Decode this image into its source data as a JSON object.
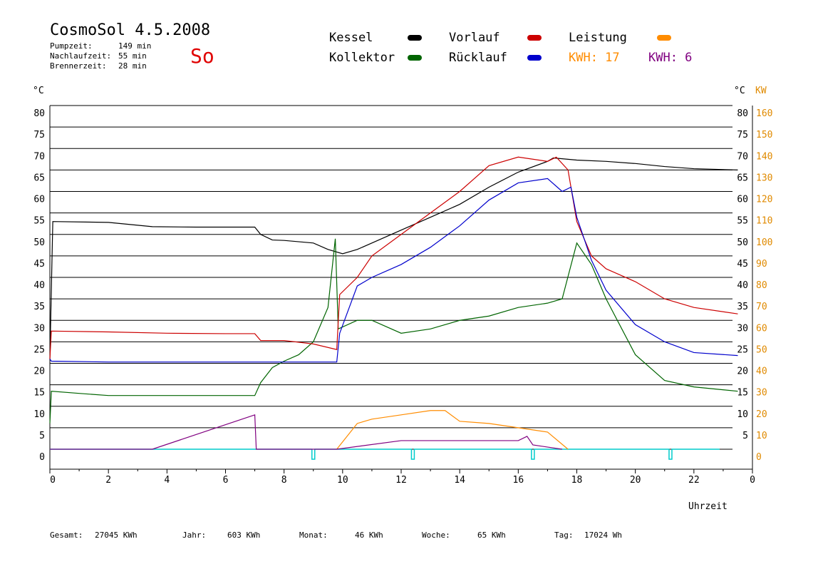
{
  "header": {
    "title": "CosmoSol 4.5.2008",
    "day_label": "So",
    "stats": [
      {
        "label": "Pumpzeit:",
        "value": "149 min"
      },
      {
        "label": "Nachlaufzeit:",
        "value": "55 min"
      },
      {
        "label": "Brennerzeit:",
        "value": "28 min"
      }
    ]
  },
  "legend": {
    "kessel": "Kessel",
    "kollektor": "Kollektor",
    "vorlauf": "Vorlauf",
    "ruecklauf": "Rücklauf",
    "leistung": "Leistung",
    "kwh1": "KWH: 17",
    "kwh2": "KWH: 6"
  },
  "footer": {
    "gesamt_label": "Gesamt:",
    "gesamt_value": "27045 KWh",
    "jahr_label": "Jahr:",
    "jahr_value": "603 KWh",
    "monat_label": "Monat:",
    "monat_value": "46 KWh",
    "woche_label": "Woche:",
    "woche_value": "65 KWh",
    "tag_label": "Tag:",
    "tag_value": "17024 Wh"
  },
  "colors": {
    "kessel": "#000000",
    "kollektor": "#006400",
    "vorlauf": "#cc0000",
    "ruecklauf": "#0000cc",
    "leistung": "#ff8c00",
    "kwh2": "#800080",
    "pump": "#00cccc"
  },
  "chart_data": {
    "type": "line",
    "xlabel": "Uhrzeit",
    "ylabel": "°C",
    "ylabel_right": "°C",
    "ylabel_right2": "KW",
    "xlim": [
      0,
      24
    ],
    "ylim": [
      0,
      80
    ],
    "ylim_right2": [
      0,
      160
    ],
    "x_ticks": [
      "0",
      "2",
      "4",
      "6",
      "8",
      "10",
      "12",
      "14",
      "16",
      "18",
      "20",
      "22",
      "0"
    ],
    "y_ticks": [
      "0",
      "5",
      "10",
      "15",
      "20",
      "25",
      "30",
      "35",
      "40",
      "45",
      "50",
      "55",
      "60",
      "65",
      "70",
      "75",
      "80"
    ],
    "y_ticks_right": [
      "5",
      "10",
      "15",
      "20",
      "25",
      "30",
      "35",
      "40",
      "45",
      "50",
      "55",
      "60",
      "65",
      "70",
      "75",
      "80"
    ],
    "y_ticks_right2": [
      "0",
      "10",
      "20",
      "30",
      "40",
      "50",
      "60",
      "70",
      "80",
      "90",
      "100",
      "110",
      "120",
      "130",
      "140",
      "150",
      "160"
    ],
    "grid": true,
    "series": [
      {
        "name": "Kessel",
        "color": "#000000",
        "x": [
          0,
          0.1,
          2,
          3.5,
          5,
          7,
          7.2,
          7.6,
          8,
          9,
          9.5,
          10,
          10.5,
          11,
          12,
          13,
          14,
          15,
          16,
          17,
          17.2,
          18,
          19,
          20,
          21,
          22,
          23.5
        ],
        "y": [
          21,
          53,
          52.8,
          51.8,
          51.7,
          51.7,
          50,
          48.7,
          48.6,
          48,
          46.5,
          45.5,
          46.5,
          48,
          51,
          54,
          57,
          61,
          64.5,
          67,
          67.8,
          67.3,
          67,
          66.5,
          65.8,
          65.3,
          65
        ]
      },
      {
        "name": "Kollektor",
        "color": "#006400",
        "x": [
          0,
          0.05,
          1,
          2,
          3,
          4,
          5,
          6,
          7,
          7.2,
          7.6,
          8,
          8.5,
          9,
          9.5,
          9.75,
          9.85,
          10.5,
          11,
          12,
          13,
          13.5,
          14,
          15,
          16,
          17,
          17.5,
          18,
          18.5,
          19,
          20,
          21,
          22,
          23.5
        ],
        "y": [
          6,
          13.5,
          13,
          12.5,
          12.5,
          12.5,
          12.5,
          12.5,
          12.5,
          15.5,
          19,
          20.5,
          22,
          25,
          33,
          49,
          28,
          30,
          30,
          27,
          28,
          29,
          30,
          31,
          33,
          34,
          35,
          48,
          43,
          35,
          22,
          16,
          14.5,
          13.5
        ]
      },
      {
        "name": "Vorlauf",
        "color": "#cc0000",
        "x": [
          0,
          0.05,
          2,
          4,
          6,
          7,
          7.2,
          8,
          9,
          9.8,
          9.9,
          10.5,
          11,
          12,
          13,
          14,
          15,
          16,
          17,
          17.3,
          17.7,
          18,
          18.5,
          19,
          20,
          21,
          22,
          23.5
        ],
        "y": [
          21,
          27.5,
          27.3,
          27,
          26.9,
          26.9,
          25.3,
          25.3,
          24.5,
          23.2,
          36,
          40,
          45,
          50,
          55,
          60,
          66,
          68,
          67,
          68,
          65,
          53,
          45,
          42,
          39,
          35,
          33,
          31.5
        ]
      },
      {
        "name": "Rücklauf",
        "color": "#0000cc",
        "x": [
          0,
          0.05,
          2,
          4,
          6,
          7,
          8,
          9,
          9.8,
          9.9,
          10.5,
          11,
          12,
          13,
          14,
          15,
          16,
          17,
          17.5,
          17.8,
          18,
          18.5,
          19,
          20,
          21,
          22,
          23.5
        ],
        "y": [
          21,
          20.5,
          20.3,
          20.3,
          20.3,
          20.3,
          20.3,
          20.3,
          20.3,
          27,
          38,
          40,
          43,
          47,
          52,
          58,
          62,
          63,
          60,
          61,
          54,
          44,
          37,
          29,
          25,
          22.5,
          21.8
        ]
      },
      {
        "name": "Leistung",
        "color": "#ff8c00",
        "x": [
          9.8,
          10.5,
          11,
          12,
          13,
          13.5,
          14,
          15,
          16,
          17,
          17.7
        ],
        "y": [
          0,
          12,
          14,
          16,
          18,
          18,
          13,
          12,
          10,
          8,
          0
        ]
      },
      {
        "name": "KWH: 6",
        "color": "#800080",
        "x": [
          0,
          3.5,
          7,
          7.05,
          9.8,
          12,
          14,
          16,
          16.3,
          16.5,
          17.5
        ],
        "y": [
          0,
          0,
          8,
          0,
          0,
          2,
          2,
          2,
          3,
          1,
          0
        ]
      }
    ],
    "pump": {
      "color": "#00cccc",
      "pulses": [
        9.0,
        12.4,
        16.5,
        21.2
      ]
    }
  }
}
